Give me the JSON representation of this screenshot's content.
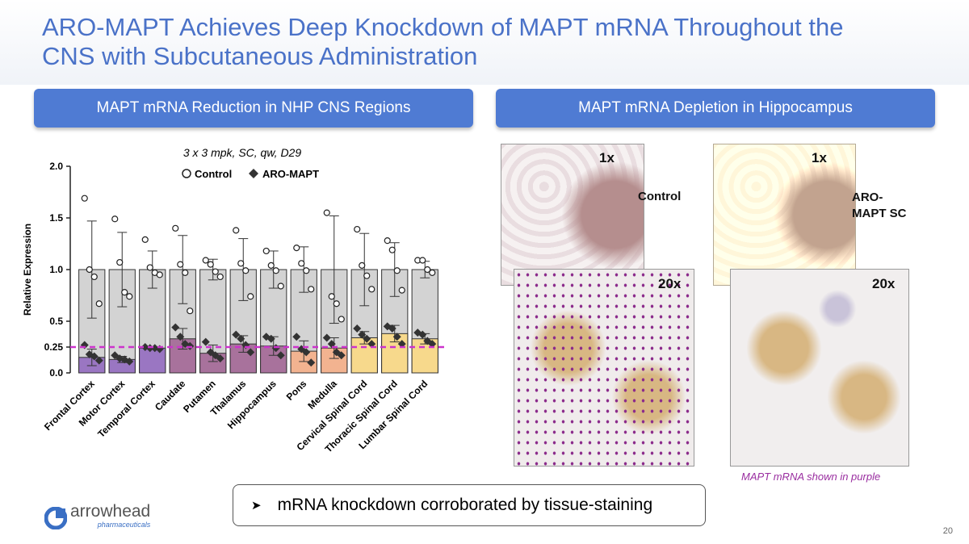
{
  "slide": {
    "title": "ARO-MAPT Achieves Deep Knockdown of MAPT mRNA Throughout the CNS with Subcutaneous Administration",
    "left_header": "MAPT mRNA Reduction in NHP CNS Regions",
    "right_header": "MAPT mRNA Depletion in Hippocampus",
    "panels": [
      {
        "label": "Control",
        "zoom_low": "1x",
        "zoom_high": "20x"
      },
      {
        "label": "ARO-MAPT SC",
        "zoom_low": "1x",
        "zoom_high": "20x"
      }
    ],
    "caption": "MAPT mRNA shown in purple",
    "bullet": "mRNA knockdown corroborated by tissue-staining",
    "logo": {
      "name": "arrowhead",
      "sub": "pharmaceuticals"
    },
    "page_number": "20"
  },
  "chart_data": {
    "type": "bar",
    "subtitle": "3 x 3 mpk, SC, qw, D29",
    "y_label": "Relative Expression",
    "categories": [
      "Frontal Cortex",
      "Motor Cortex",
      "Temporal Cortex",
      "Caudate",
      "Putamen",
      "Thalamus",
      "Hippocampus",
      "Pons",
      "Medulla",
      "Cervical Spinal Cord",
      "Thoracic Spinal Cord",
      "Lumbar Spinal Cord"
    ],
    "ylim": [
      0,
      2
    ],
    "yticks": [
      {
        "value": 0,
        "label": "0.0"
      },
      0.25,
      0.5,
      {
        "value": 1,
        "label": "1.0"
      },
      1.5,
      {
        "value": 2,
        "label": "2.0"
      }
    ],
    "reference_line": 0.25,
    "reference_color": "#cc33cc",
    "series": [
      {
        "name": "Control",
        "color": "#d3d3d3",
        "values": [
          1,
          1,
          1,
          1,
          1,
          1,
          1,
          1,
          1,
          1,
          1,
          1
        ],
        "errors": [
          0.47,
          0.36,
          0.18,
          0.33,
          0.1,
          0.3,
          0.18,
          0.22,
          0.52,
          0.35,
          0.26,
          0.08
        ],
        "points": [
          [
            1.69,
            1.0,
            0.93,
            0.67
          ],
          [
            1.49,
            1.07,
            0.78,
            0.74
          ],
          [
            1.29,
            1.02,
            0.97,
            0.95
          ],
          [
            1.4,
            1.05,
            0.97,
            0.6
          ],
          [
            1.09,
            1.05,
            0.98,
            0.93
          ],
          [
            1.38,
            1.06,
            0.99,
            0.74
          ],
          [
            1.18,
            1.04,
            0.99,
            0.84
          ],
          [
            1.21,
            1.06,
            0.99,
            0.81
          ],
          [
            1.55,
            0.74,
            0.67,
            0.52
          ],
          [
            1.39,
            1.04,
            0.94,
            0.81
          ],
          [
            1.28,
            1.19,
            0.99,
            0.8
          ],
          [
            1.09,
            1.09,
            1.0,
            0.97
          ]
        ]
      },
      {
        "name": "ARO-MAPT",
        "color": "#333333",
        "bar_colors": [
          "#9a76c2",
          "#9a76c2",
          "#9a76c2",
          "#a8729c",
          "#a8729c",
          "#a8729c",
          "#a8729c",
          "#f2b390",
          "#f2b390",
          "#f7d98c",
          "#f7d98c",
          "#f7d98c"
        ],
        "values": [
          0.15,
          0.13,
          0.24,
          0.33,
          0.19,
          0.28,
          0.26,
          0.21,
          0.24,
          0.34,
          0.38,
          0.33
        ],
        "errors": [
          0.08,
          0.03,
          0.01,
          0.1,
          0.08,
          0.08,
          0.09,
          0.1,
          0.1,
          0.06,
          0.08,
          0.05
        ],
        "points": [
          [
            0.27,
            0.18,
            0.16,
            0.12
          ],
          [
            0.17,
            0.14,
            0.13,
            0.11
          ],
          [
            0.25,
            0.24,
            0.24,
            0.23
          ],
          [
            0.44,
            0.35,
            0.28,
            0.26
          ],
          [
            0.3,
            0.2,
            0.17,
            0.14
          ],
          [
            0.37,
            0.33,
            0.27,
            0.2
          ],
          [
            0.35,
            0.33,
            0.24,
            0.17
          ],
          [
            0.35,
            0.23,
            0.2,
            0.1
          ],
          [
            0.34,
            0.28,
            0.2,
            0.17
          ],
          [
            0.43,
            0.37,
            0.33,
            0.28
          ],
          [
            0.45,
            0.43,
            0.35,
            0.28
          ],
          [
            0.39,
            0.37,
            0.31,
            0.28
          ]
        ]
      }
    ]
  }
}
